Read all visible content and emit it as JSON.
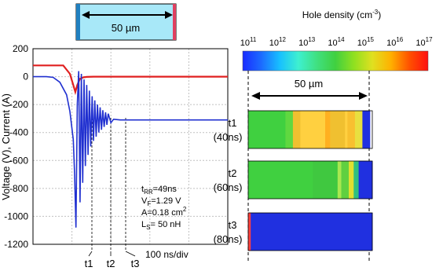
{
  "chart_data": [
    {
      "type": "line",
      "ylabel": "Voltage (V), Current (A)",
      "ylim": [
        -1200,
        200
      ],
      "yticks": [
        "200",
        "0",
        "-200",
        "-400",
        "-600",
        "-800",
        "-1000",
        "-1200"
      ],
      "ytick_values": [
        200,
        0,
        -200,
        -400,
        -600,
        -800,
        -1000,
        -1200
      ],
      "time_scale": "100 ns/div",
      "time_markers": [
        "t1",
        "t2",
        "t3"
      ],
      "annotations": {
        "trr": "t",
        "trr_sub": "RR",
        "trr_val": "=49ns",
        "vf": "V",
        "vf_sub": "F",
        "vf_val": "=1.29 V",
        "area": "A=0.18 cm",
        "area_sup": "2",
        "ls": "L",
        "ls_sub": "S",
        "ls_val": "= 50 nH"
      },
      "series": [
        {
          "color": "#e02020",
          "x": [
            0,
            45,
            55,
            60,
            63,
            66,
            70,
            75,
            80,
            90,
            100,
            120,
            150,
            200,
            290
          ],
          "y": [
            80,
            80,
            20,
            -60,
            -110,
            -60,
            -15,
            -5,
            -2,
            0,
            0,
            0,
            0,
            0,
            0
          ]
        },
        {
          "color": "#2030d0",
          "x": [
            0,
            20,
            30,
            40,
            50,
            55,
            60,
            62,
            64,
            66,
            68,
            70,
            72,
            74,
            76,
            78,
            80,
            82,
            84,
            86,
            88,
            90,
            92,
            94,
            96,
            98,
            100,
            102,
            104,
            106,
            108,
            110,
            112,
            116,
            120,
            130,
            150,
            200,
            290
          ],
          "y": [
            0,
            0,
            -5,
            -40,
            -130,
            -250,
            -450,
            -700,
            -1080,
            -200,
            40,
            -900,
            20,
            -760,
            -20,
            -640,
            -60,
            -560,
            -100,
            -500,
            -140,
            -460,
            -170,
            -430,
            -200,
            -400,
            -220,
            -380,
            -240,
            -360,
            -255,
            -345,
            -265,
            -330,
            -305,
            -310,
            -310,
            -310,
            -310
          ]
        }
      ]
    },
    {
      "type": "heatmap",
      "title": "Hole density (cm",
      "title_sup": "-3",
      "title_close": ")",
      "colorbar_ticks": [
        {
          "base": "10",
          "exp": "11"
        },
        {
          "base": "10",
          "exp": "12"
        },
        {
          "base": "10",
          "exp": "13"
        },
        {
          "base": "10",
          "exp": "14"
        },
        {
          "base": "10",
          "exp": "15"
        },
        {
          "base": "10",
          "exp": "16"
        },
        {
          "base": "10",
          "exp": "17"
        }
      ],
      "colorbar_colors": [
        "#1a2cff",
        "#1c6bff",
        "#18c0ff",
        "#3ef0d0",
        "#40e080",
        "#40d040",
        "#90e020",
        "#e0e020",
        "#ffb000",
        "#ff5000",
        "#ff1010"
      ],
      "width_label": "50 µm",
      "rows": [
        {
          "label": "t1",
          "time": "(40ns)",
          "bands": [
            "#40d040",
            "#60d840",
            "#f0c030",
            "#ffd040",
            "#ffb020",
            "#f0c030",
            "#ffd040",
            "#f8c030",
            "#e8e040",
            "#2030e0"
          ],
          "band_widths": [
            0.3,
            0.06,
            0.06,
            0.2,
            0.04,
            0.12,
            0.02,
            0.06,
            0.06,
            0.06
          ]
        },
        {
          "label": "t2",
          "time": "(60ns)",
          "bands": [
            "#40d040",
            "#40c840",
            "#a8e850",
            "#60d040",
            "#e0e030",
            "#30c080",
            "#2030e0"
          ],
          "band_widths": [
            0.52,
            0.2,
            0.03,
            0.06,
            0.04,
            0.04,
            0.11
          ]
        },
        {
          "label": "t3",
          "time": "(80ns)",
          "bands": [
            "#ff4040",
            "#2030e0"
          ],
          "band_widths": [
            0.02,
            0.98
          ]
        }
      ]
    }
  ],
  "device": {
    "width_label": "50 µm",
    "colors": {
      "fill": "#a8e8f8",
      "left_edge": "#2080c0",
      "right_edge": "#e04060"
    }
  }
}
